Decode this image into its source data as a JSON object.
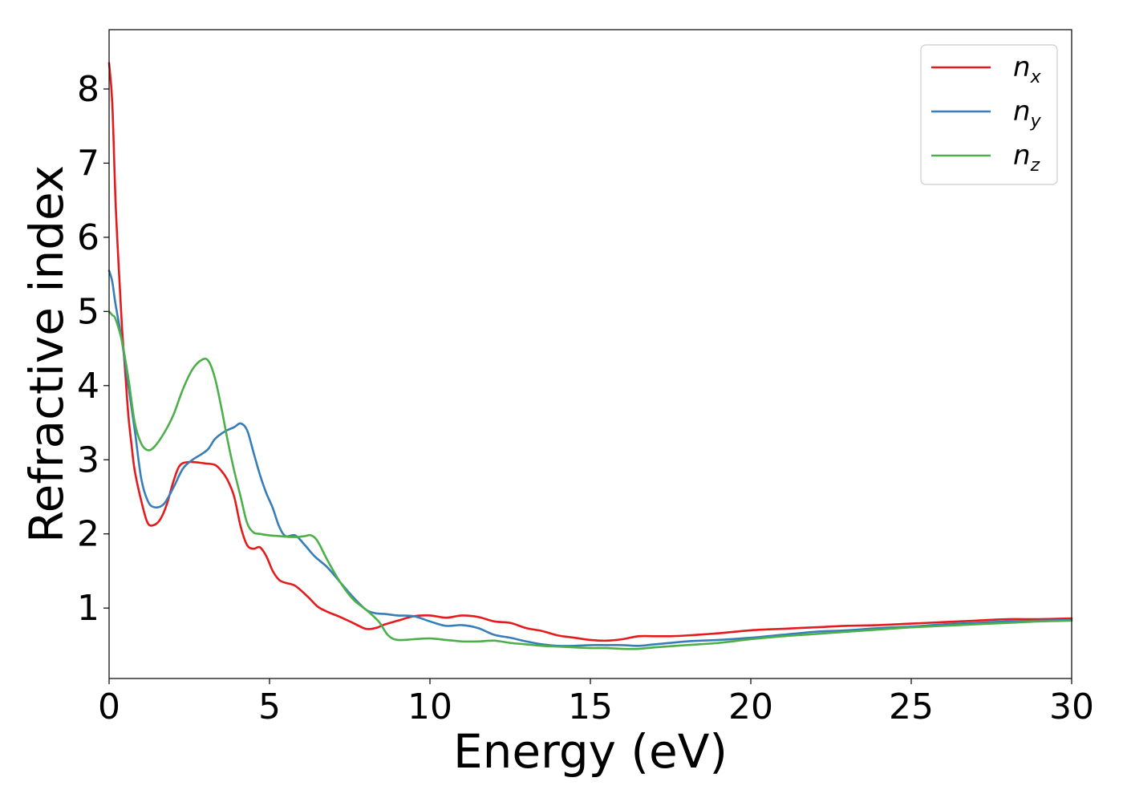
{
  "chart_data": {
    "type": "line",
    "xlabel": "Energy (eV)",
    "ylabel": "Refractive index",
    "xlim": [
      0,
      30
    ],
    "ylim": [
      0.05,
      8.8
    ],
    "xticks": [
      "0",
      "5",
      "10",
      "15",
      "20",
      "25",
      "30"
    ],
    "yticks": [
      "1",
      "2",
      "3",
      "4",
      "5",
      "6",
      "7",
      "8"
    ],
    "grid": false,
    "legend_position": "top-right",
    "series": [
      {
        "name": "n",
        "subscript": "x",
        "color": "#e41a1c",
        "x": [
          0,
          0.1,
          0.2,
          0.3,
          0.4,
          0.5,
          0.6,
          0.7,
          0.8,
          1.0,
          1.2,
          1.4,
          1.6,
          1.8,
          2.0,
          2.2,
          2.5,
          3.0,
          3.3,
          3.5,
          3.7,
          3.9,
          4.1,
          4.3,
          4.5,
          4.7,
          4.9,
          5.1,
          5.3,
          5.5,
          5.8,
          6.2,
          6.5,
          6.8,
          7.2,
          7.6,
          8.0,
          8.3,
          8.6,
          9.0,
          9.5,
          10.0,
          10.5,
          11.0,
          11.5,
          12.0,
          12.5,
          13.0,
          13.5,
          14.0,
          14.5,
          15.0,
          15.5,
          16.0,
          16.5,
          17.0,
          17.5,
          18.0,
          19.0,
          20.0,
          21.0,
          22.0,
          23.0,
          24.0,
          25.0,
          26.0,
          27.0,
          28.0,
          29.0,
          30.0
        ],
        "y": [
          8.35,
          7.8,
          6.5,
          5.6,
          4.8,
          4.2,
          3.6,
          3.2,
          2.85,
          2.45,
          2.15,
          2.12,
          2.2,
          2.4,
          2.7,
          2.92,
          2.97,
          2.95,
          2.93,
          2.85,
          2.72,
          2.5,
          2.1,
          1.85,
          1.8,
          1.82,
          1.7,
          1.5,
          1.38,
          1.34,
          1.3,
          1.15,
          1.02,
          0.95,
          0.88,
          0.8,
          0.72,
          0.73,
          0.78,
          0.83,
          0.89,
          0.9,
          0.87,
          0.9,
          0.88,
          0.82,
          0.8,
          0.73,
          0.69,
          0.63,
          0.6,
          0.57,
          0.56,
          0.58,
          0.62,
          0.62,
          0.62,
          0.63,
          0.66,
          0.7,
          0.72,
          0.74,
          0.76,
          0.77,
          0.79,
          0.81,
          0.83,
          0.85,
          0.85,
          0.86
        ]
      },
      {
        "name": "n",
        "subscript": "y",
        "color": "#377eb8",
        "x": [
          0,
          0.1,
          0.2,
          0.4,
          0.6,
          0.8,
          1.0,
          1.2,
          1.4,
          1.7,
          2.0,
          2.3,
          2.6,
          2.9,
          3.1,
          3.3,
          3.6,
          3.9,
          4.1,
          4.3,
          4.5,
          4.7,
          4.9,
          5.1,
          5.3,
          5.5,
          5.8,
          6.1,
          6.4,
          6.8,
          7.2,
          7.6,
          8.0,
          8.3,
          8.6,
          9.0,
          9.5,
          10.0,
          10.5,
          11.0,
          11.5,
          12.0,
          12.5,
          13.0,
          13.5,
          14.0,
          14.5,
          15.0,
          15.5,
          16.0,
          16.5,
          17.0,
          18.0,
          19.0,
          20.0,
          21.0,
          22.0,
          23.0,
          24.0,
          25.0,
          26.0,
          27.0,
          28.0,
          29.0,
          30.0
        ],
        "y": [
          5.55,
          5.4,
          5.1,
          4.6,
          4.0,
          3.4,
          2.75,
          2.45,
          2.36,
          2.4,
          2.62,
          2.88,
          3.0,
          3.08,
          3.15,
          3.28,
          3.38,
          3.44,
          3.49,
          3.4,
          3.1,
          2.8,
          2.55,
          2.35,
          2.1,
          1.97,
          1.98,
          1.85,
          1.7,
          1.55,
          1.35,
          1.15,
          0.98,
          0.93,
          0.92,
          0.9,
          0.89,
          0.82,
          0.76,
          0.77,
          0.73,
          0.64,
          0.6,
          0.55,
          0.51,
          0.49,
          0.49,
          0.5,
          0.5,
          0.5,
          0.49,
          0.51,
          0.55,
          0.57,
          0.6,
          0.64,
          0.68,
          0.7,
          0.73,
          0.75,
          0.78,
          0.8,
          0.82,
          0.83,
          0.84
        ]
      },
      {
        "name": "n",
        "subscript": "z",
        "color": "#4daf4a",
        "x": [
          0,
          0.1,
          0.2,
          0.4,
          0.6,
          0.8,
          1.0,
          1.2,
          1.4,
          1.7,
          2.0,
          2.3,
          2.6,
          2.9,
          3.1,
          3.3,
          3.5,
          3.7,
          3.9,
          4.1,
          4.3,
          4.5,
          4.7,
          5.0,
          5.3,
          5.6,
          5.9,
          6.1,
          6.3,
          6.5,
          6.8,
          7.2,
          7.6,
          8.0,
          8.4,
          8.7,
          9.0,
          9.5,
          10.0,
          10.5,
          11.0,
          11.5,
          12.0,
          12.5,
          13.0,
          13.5,
          14.0,
          14.5,
          15.0,
          15.5,
          16.0,
          16.5,
          17.0,
          18.0,
          19.0,
          20.0,
          21.0,
          22.0,
          23.0,
          24.0,
          25.0,
          26.0,
          27.0,
          28.0,
          29.0,
          30.0
        ],
        "y": [
          5.0,
          4.95,
          4.9,
          4.6,
          4.1,
          3.5,
          3.22,
          3.13,
          3.17,
          3.35,
          3.6,
          3.95,
          4.22,
          4.35,
          4.33,
          4.1,
          3.7,
          3.25,
          2.85,
          2.5,
          2.15,
          2.02,
          2.0,
          1.98,
          1.97,
          1.96,
          1.96,
          1.97,
          1.98,
          1.9,
          1.65,
          1.35,
          1.12,
          0.98,
          0.82,
          0.63,
          0.57,
          0.58,
          0.59,
          0.57,
          0.55,
          0.55,
          0.56,
          0.53,
          0.51,
          0.49,
          0.48,
          0.47,
          0.46,
          0.46,
          0.45,
          0.45,
          0.47,
          0.5,
          0.53,
          0.58,
          0.62,
          0.65,
          0.68,
          0.71,
          0.74,
          0.76,
          0.78,
          0.8,
          0.82,
          0.83
        ]
      }
    ]
  }
}
